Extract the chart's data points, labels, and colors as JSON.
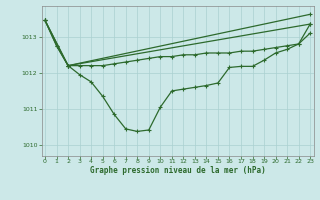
{
  "title": "Graphe pression niveau de la mer (hPa)",
  "bg_color": "#cce8e8",
  "line_color": "#2d6a2d",
  "grid_color": "#aad0d0",
  "ylim": [
    1009.7,
    1013.85
  ],
  "xlim": [
    -0.3,
    23.3
  ],
  "yticks": [
    1010,
    1011,
    1012,
    1013
  ],
  "xticks": [
    0,
    1,
    2,
    3,
    4,
    5,
    6,
    7,
    8,
    9,
    10,
    11,
    12,
    13,
    14,
    15,
    16,
    17,
    18,
    19,
    20,
    21,
    22,
    23
  ],
  "line1_x": [
    0,
    1,
    2,
    3,
    4,
    5,
    6,
    7,
    8,
    9,
    10,
    11,
    12,
    13,
    14,
    15,
    16,
    17,
    18,
    19,
    20,
    21,
    22,
    23
  ],
  "line1_y": [
    1013.45,
    1012.75,
    1012.2,
    1012.2,
    1012.2,
    1012.2,
    1012.25,
    1012.3,
    1012.35,
    1012.4,
    1012.45,
    1012.45,
    1012.5,
    1012.5,
    1012.55,
    1012.55,
    1012.55,
    1012.6,
    1012.6,
    1012.65,
    1012.7,
    1012.75,
    1012.8,
    1013.1
  ],
  "line2_x": [
    0,
    2,
    23
  ],
  "line2_y": [
    1013.45,
    1012.2,
    1013.62
  ],
  "line3_x": [
    0,
    1,
    2,
    3,
    4,
    5,
    6,
    7,
    8,
    9,
    10,
    11,
    12,
    13,
    14,
    15,
    16,
    17,
    18,
    19,
    20,
    21,
    22,
    23
  ],
  "line3_y": [
    1013.45,
    1012.75,
    1012.2,
    1011.95,
    1011.75,
    1011.35,
    1010.85,
    1010.45,
    1010.38,
    1010.42,
    1011.05,
    1011.5,
    1011.55,
    1011.6,
    1011.65,
    1011.72,
    1012.15,
    1012.18,
    1012.18,
    1012.35,
    1012.55,
    1012.65,
    1012.8,
    1013.35
  ],
  "line4_x": [
    0,
    2,
    23
  ],
  "line4_y": [
    1013.45,
    1012.2,
    1013.35
  ]
}
